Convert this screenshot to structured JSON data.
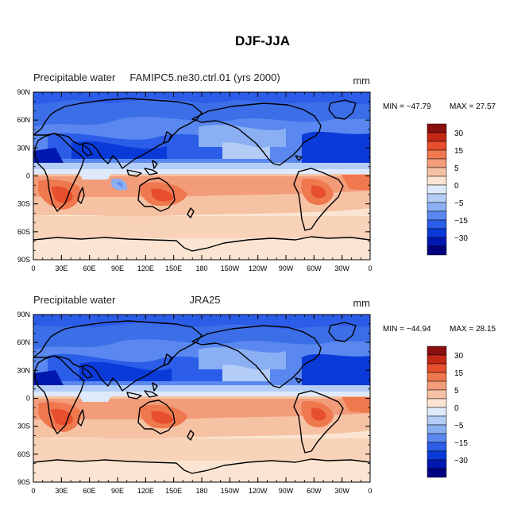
{
  "figure": {
    "title": "DJF-JJA",
    "colors": {
      "levels_colors": [
        "#000080",
        "#0018b0",
        "#0a3ad8",
        "#2b5de8",
        "#5a88f0",
        "#8aaff2",
        "#b4cdf6",
        "#deeafb",
        "#fbe5d2",
        "#f6c2a4",
        "#f29c79",
        "#ef784f",
        "#e64e2c",
        "#c42814",
        "#8a0f0f"
      ],
      "continent_line": "#000000"
    },
    "colorbar_labels": [
      "30",
      "15",
      "5",
      "0",
      "−5",
      "−15",
      "−30"
    ],
    "x_ticks": [
      "0",
      "30E",
      "60E",
      "90E",
      "120E",
      "150E",
      "180",
      "150W",
      "120W",
      "90W",
      "60W",
      "30W",
      "0"
    ],
    "y_ticks": [
      "90N",
      "60N",
      "30N",
      "0",
      "30S",
      "60S",
      "90S"
    ],
    "panels": [
      {
        "left_title": "Precipitable water",
        "center_title": "FAMIPC5.ne30.ctrl.01 (yrs 2000)",
        "units": "mm",
        "min_text": "MIN = −47.79",
        "max_text": "MAX =  27.57",
        "min_value": -47.79,
        "max_value": 27.57
      },
      {
        "left_title": "Precipitable water",
        "center_title": "JRA25",
        "units": "mm",
        "min_text": "MIN = −44.94",
        "max_text": "MAX =  28.15",
        "min_value": -44.94,
        "max_value": 28.15
      }
    ]
  }
}
